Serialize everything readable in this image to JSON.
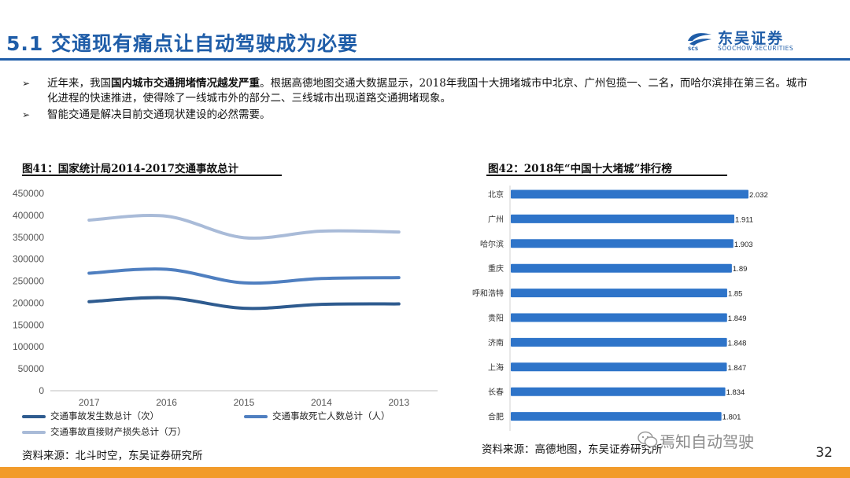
{
  "header": {
    "title": "5.1 交通现有痛点让自动驾驶成为必要",
    "logo_cn": "东吴证券",
    "logo_en": "SOOCHOW SECURITIES",
    "logo_abbr": "SCS"
  },
  "bullets": [
    {
      "pre": "近年来，我国",
      "bold": "国内城市交通拥堵情况越发严重",
      "post": "。根据高德地图交通大数据显示，2018年我国十大拥堵城市中北京、广州包揽一、二名，而哈尔滨排在第三名。城市化进程的快速推进，使得除了一线城市外的部分二、三线城市出现道路交通拥堵现象。"
    },
    {
      "pre": "智能交通是解决目前交通现状建设的必然需要。",
      "bold": "",
      "post": ""
    }
  ],
  "fig1": {
    "title": "图41：国家统计局2014-2017交通事故总计",
    "source": "资料来源：北斗时空，东吴证券研究所"
  },
  "fig2": {
    "title": "图42：2018年“中国十大堵城”排行榜",
    "source": "资料来源：高德地图，东吴证券研究所"
  },
  "watermark": "焉知自动驾驶",
  "page_number": "32",
  "colors": {
    "accent": "#1f5da8",
    "bar": "#2e74c9",
    "series1": "#2e5b8f",
    "series2": "#4f7fc0",
    "series3": "#a9bbd8",
    "bottom_bar": "#f29b2a"
  },
  "chart_data": [
    {
      "type": "line",
      "x": [
        "2017",
        "2016",
        "2015",
        "2014",
        "2013"
      ],
      "ylim": [
        0,
        450000
      ],
      "yticks": [
        0,
        50000,
        100000,
        150000,
        200000,
        250000,
        300000,
        350000,
        400000,
        450000
      ],
      "grid": false,
      "legend": "bottom",
      "series": [
        {
          "name": "交通事故发生数总计（次）",
          "values": [
            203000,
            212000,
            188000,
            197000,
            198000
          ],
          "color": "#2e5b8f"
        },
        {
          "name": "交通事故死亡人数总计（人）",
          "values": [
            268000,
            277000,
            246000,
            256000,
            258000
          ],
          "color": "#4f7fc0"
        },
        {
          "name": "交通事故直接财产损失总计（万）",
          "values": [
            389000,
            398000,
            349000,
            364000,
            362000
          ],
          "color": "#a9bbd8"
        }
      ]
    },
    {
      "type": "bar",
      "orientation": "horizontal",
      "categories": [
        "北京",
        "广州",
        "哈尔滨",
        "重庆",
        "呼和浩特",
        "贵阳",
        "济南",
        "上海",
        "长春",
        "合肥"
      ],
      "values": [
        2.032,
        1.911,
        1.903,
        1.89,
        1.85,
        1.849,
        1.848,
        1.847,
        1.834,
        1.801
      ],
      "labels": [
        "2.032",
        "1.911",
        "1.903",
        "1.89",
        "1.85",
        "1.849",
        "1.848",
        "1.847",
        "1.834",
        "1.801"
      ],
      "color": "#2e74c9"
    }
  ]
}
